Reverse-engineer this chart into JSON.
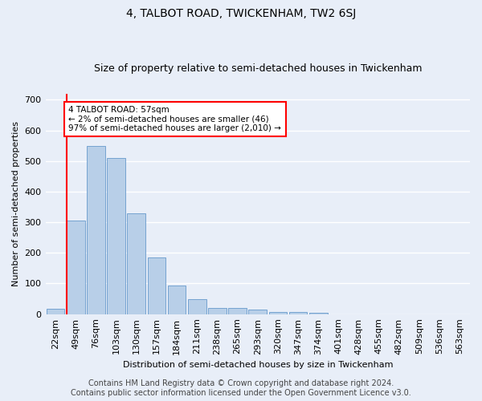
{
  "title": "4, TALBOT ROAD, TWICKENHAM, TW2 6SJ",
  "subtitle": "Size of property relative to semi-detached houses in Twickenham",
  "xlabel": "Distribution of semi-detached houses by size in Twickenham",
  "ylabel": "Number of semi-detached properties",
  "categories": [
    "22sqm",
    "49sqm",
    "76sqm",
    "103sqm",
    "130sqm",
    "157sqm",
    "184sqm",
    "211sqm",
    "238sqm",
    "265sqm",
    "293sqm",
    "320sqm",
    "347sqm",
    "374sqm",
    "401sqm",
    "428sqm",
    "455sqm",
    "482sqm",
    "509sqm",
    "536sqm",
    "563sqm"
  ],
  "values": [
    18,
    305,
    550,
    510,
    330,
    185,
    93,
    48,
    20,
    20,
    15,
    8,
    8,
    5,
    0,
    0,
    0,
    0,
    0,
    0,
    0
  ],
  "bar_color": "#b8cfe8",
  "bar_edge_color": "#6699cc",
  "annotation_text": "4 TALBOT ROAD: 57sqm\n← 2% of semi-detached houses are smaller (46)\n97% of semi-detached houses are larger (2,010) →",
  "annotation_box_color": "white",
  "annotation_box_edge_color": "red",
  "vline_color": "red",
  "ylim": [
    0,
    720
  ],
  "yticks": [
    0,
    100,
    200,
    300,
    400,
    500,
    600,
    700
  ],
  "footer_line1": "Contains HM Land Registry data © Crown copyright and database right 2024.",
  "footer_line2": "Contains public sector information licensed under the Open Government Licence v3.0.",
  "bg_color": "#e8eef8",
  "grid_color": "white",
  "title_fontsize": 10,
  "subtitle_fontsize": 9,
  "axis_label_fontsize": 8,
  "tick_fontsize": 8,
  "footer_fontsize": 7
}
